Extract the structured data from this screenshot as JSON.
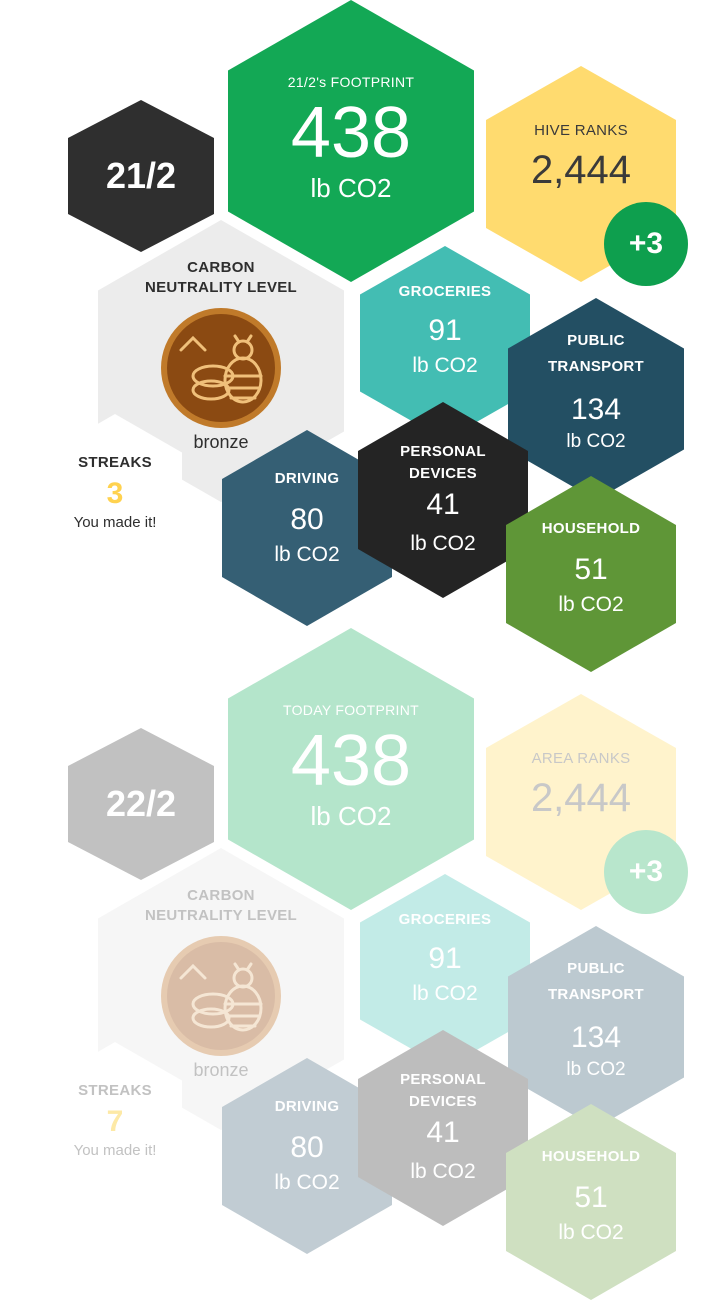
{
  "colors": {
    "footprint": "#13a855",
    "date": "#2f2f2f",
    "ranks": "#ffdb6f",
    "badge": "#0e9f4e",
    "groceries": "#43bdb3",
    "public_transport": "#234f63",
    "personal_devices": "#242424",
    "driving": "#355f74",
    "household": "#5f9637",
    "neutrality": "#ececec",
    "streak_num": "#ffd24f",
    "bronze": "#8b4a12"
  },
  "sections": [
    {
      "date": "21/2",
      "footprint": {
        "label": "21/2's FOOTPRINT",
        "value": "438",
        "unit": "lb CO2"
      },
      "ranks": {
        "label": "HIVE RANKS",
        "value": "2,444",
        "change": "+3"
      },
      "neutrality": {
        "title_line1": "CARBON",
        "title_line2": "NEUTRALITY LEVEL",
        "level": "bronze",
        "icon": "bee-medal-icon"
      },
      "streaks": {
        "label": "STREAKS",
        "value": "3",
        "message": "You made it!"
      },
      "groceries": {
        "label": "GROCERIES",
        "value": "91",
        "unit": "lb CO2"
      },
      "public_transport": {
        "label_line1": "PUBLIC",
        "label_line2": "TRANSPORT",
        "value": "134",
        "unit": "lb CO2"
      },
      "personal_devices": {
        "label_line1": "PERSONAL",
        "label_line2": "DEVICES",
        "value": "41",
        "unit": "lb CO2"
      },
      "driving": {
        "label": "DRIVING",
        "value": "80",
        "unit": "lb CO2"
      },
      "household": {
        "label": "HOUSEHOLD",
        "value": "51",
        "unit": "lb CO2"
      }
    },
    {
      "date": "22/2",
      "footprint": {
        "label": "TODAY FOOTPRINT",
        "value": "438",
        "unit": "lb CO2"
      },
      "ranks": {
        "label": "AREA RANKS",
        "value": "2,444",
        "change": "+3"
      },
      "neutrality": {
        "title_line1": "CARBON",
        "title_line2": "NEUTRALITY LEVEL",
        "level": "bronze",
        "icon": "bee-medal-icon"
      },
      "streaks": {
        "label": "STREAKS",
        "value": "7",
        "message": "You made it!"
      },
      "groceries": {
        "label": "GROCERIES",
        "value": "91",
        "unit": "lb CO2"
      },
      "public_transport": {
        "label_line1": "PUBLIC",
        "label_line2": "TRANSPORT",
        "value": "134",
        "unit": "lb CO2"
      },
      "personal_devices": {
        "label_line1": "PERSONAL",
        "label_line2": "DEVICES",
        "value": "41",
        "unit": "lb CO2"
      },
      "driving": {
        "label": "DRIVING",
        "value": "80",
        "unit": "lb CO2"
      },
      "household": {
        "label": "HOUSEHOLD",
        "value": "51",
        "unit": "lb CO2"
      }
    }
  ]
}
